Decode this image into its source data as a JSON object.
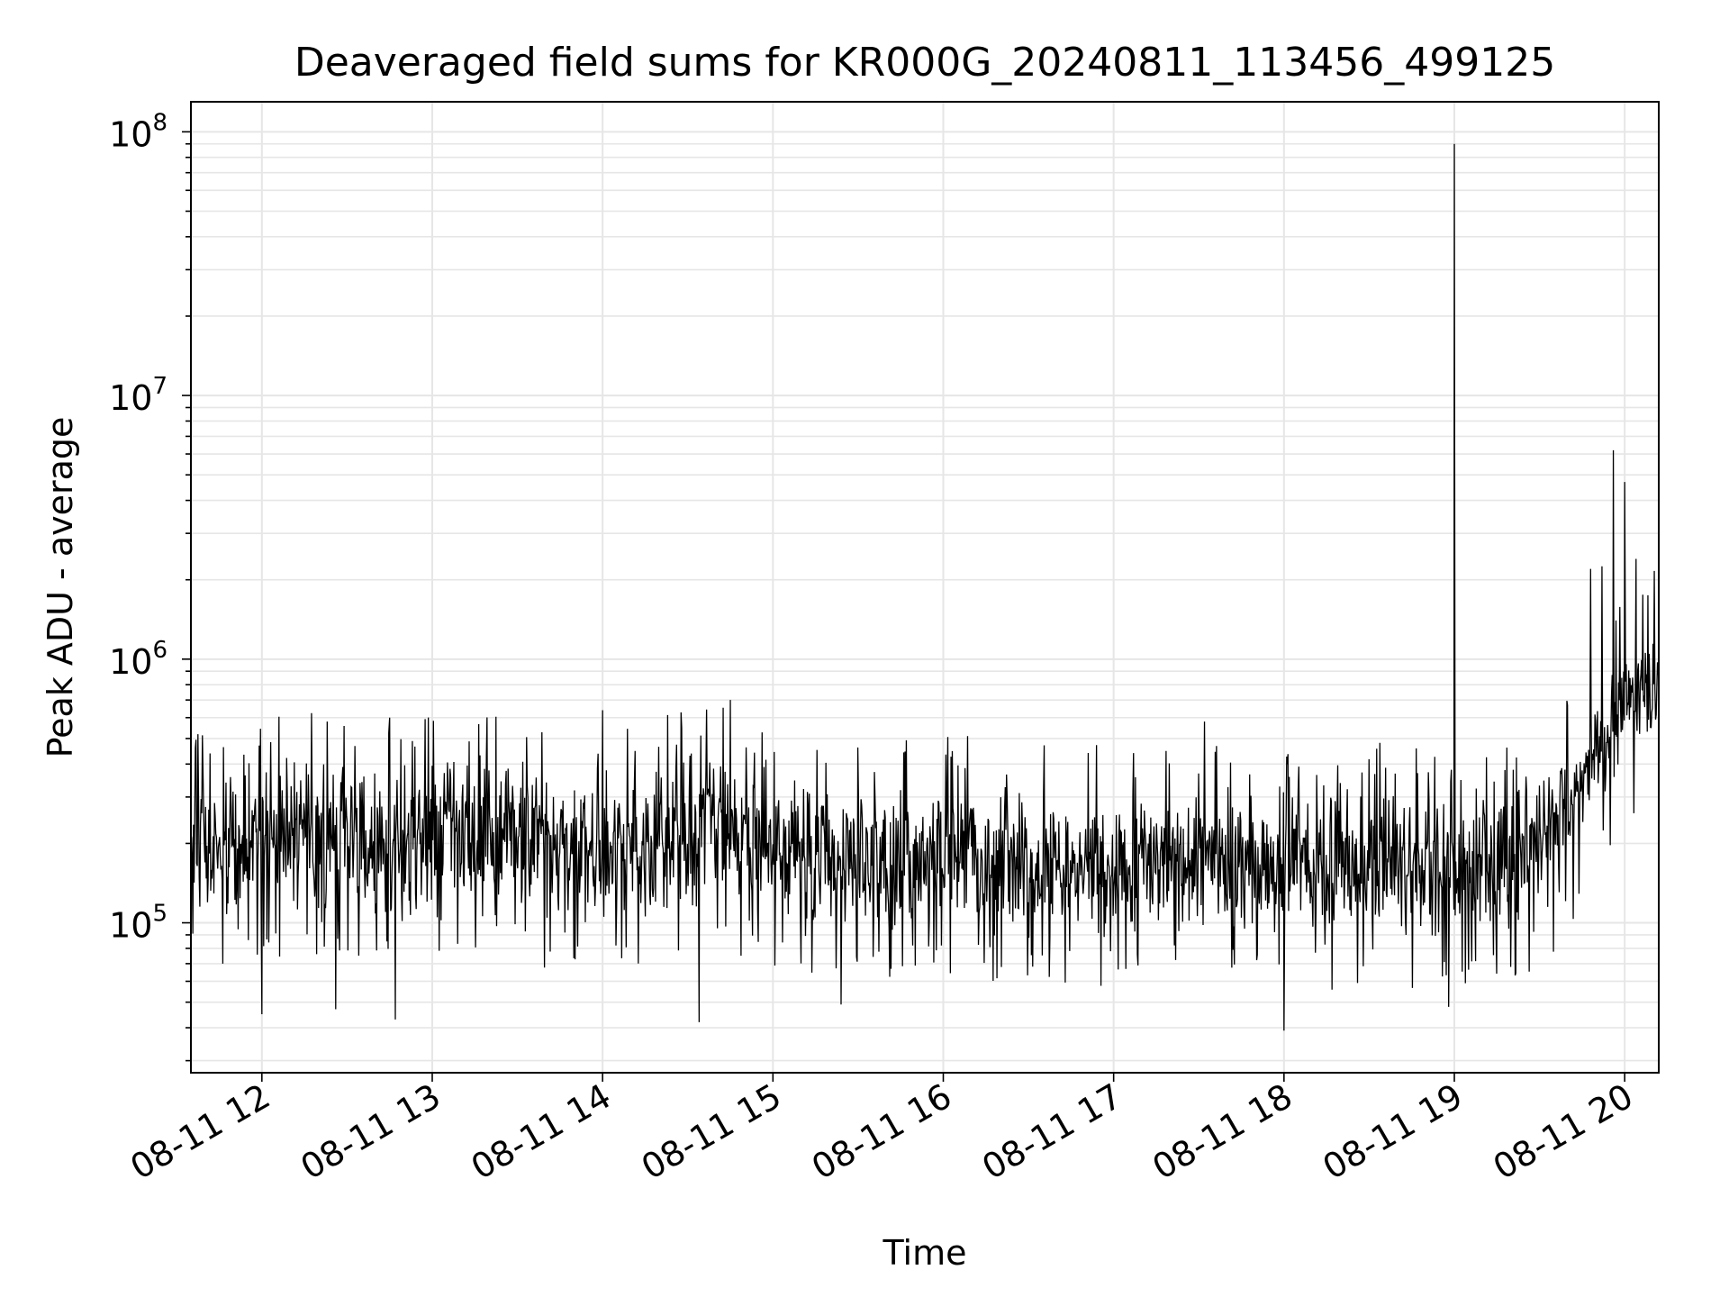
{
  "chart_data": {
    "type": "line",
    "title": "Deaveraged field sums for KR000G_20240811_113456_499125",
    "xlabel": "Time",
    "ylabel": "Peak ADU - average",
    "x_range": [
      "2024-08-11 11:35:00",
      "2024-08-11 20:12:00"
    ],
    "ylim": [
      27000,
      130000000
    ],
    "yscale": "log",
    "grid": true,
    "line_color": "#000000",
    "grid_color": "#e6e6e6",
    "x_ticks": [
      {
        "value": "2024-08-11 12:00:00",
        "label": "08-11 12"
      },
      {
        "value": "2024-08-11 13:00:00",
        "label": "08-11 13"
      },
      {
        "value": "2024-08-11 14:00:00",
        "label": "08-11 14"
      },
      {
        "value": "2024-08-11 15:00:00",
        "label": "08-11 15"
      },
      {
        "value": "2024-08-11 16:00:00",
        "label": "08-11 16"
      },
      {
        "value": "2024-08-11 17:00:00",
        "label": "08-11 17"
      },
      {
        "value": "2024-08-11 18:00:00",
        "label": "08-11 18"
      },
      {
        "value": "2024-08-11 19:00:00",
        "label": "08-11 19"
      },
      {
        "value": "2024-08-11 20:00:00",
        "label": "08-11 20"
      }
    ],
    "y_ticks": [
      {
        "value": 100000,
        "base": "10",
        "exp": "5"
      },
      {
        "value": 1000000,
        "base": "10",
        "exp": "6"
      },
      {
        "value": 10000000,
        "base": "10",
        "exp": "7"
      },
      {
        "value": 100000000,
        "base": "10",
        "exp": "8"
      }
    ],
    "series": [
      {
        "x": [
          "2024-08-11 11:35:00",
          "2024-08-11 11:45:00",
          "2024-08-11 12:00:00",
          "2024-08-11 12:20:00",
          "2024-08-11 12:40:00",
          "2024-08-11 13:00:00",
          "2024-08-11 13:20:00",
          "2024-08-11 13:40:00",
          "2024-08-11 14:00:00",
          "2024-08-11 14:20:00",
          "2024-08-11 14:40:00",
          "2024-08-11 15:00:00",
          "2024-08-11 15:30:00",
          "2024-08-11 16:00:00",
          "2024-08-11 16:30:00",
          "2024-08-11 17:00:00",
          "2024-08-11 17:30:00",
          "2024-08-11 18:00:00",
          "2024-08-11 18:30:00",
          "2024-08-11 19:00:00",
          "2024-08-11 19:20:00",
          "2024-08-11 19:40:00",
          "2024-08-11 19:50:00",
          "2024-08-11 20:00:00",
          "2024-08-11 20:12:00"
        ],
        "values": [
          200000,
          190000,
          210000,
          220000,
          200000,
          210000,
          230000,
          200000,
          190000,
          200000,
          260000,
          180000,
          170000,
          180000,
          170000,
          165000,
          170000,
          165000,
          165000,
          160000,
          170000,
          260000,
          450000,
          650000,
          750000
        ],
        "spikes": [
          {
            "x": "2024-08-11 12:23:00",
            "value": 580000
          },
          {
            "x": "2024-08-11 12:45:00",
            "value": 600000
          },
          {
            "x": "2024-08-11 14:00:00",
            "value": 640000
          },
          {
            "x": "2024-08-11 14:45:00",
            "value": 700000
          },
          {
            "x": "2024-08-11 17:32:00",
            "value": 580000
          },
          {
            "x": "2024-08-11 19:00:00",
            "value": 90000000
          },
          {
            "x": "2024-08-11 19:48:00",
            "value": 2200000
          },
          {
            "x": "2024-08-11 19:52:00",
            "value": 2250000
          },
          {
            "x": "2024-08-11 19:56:00",
            "value": 6200000
          },
          {
            "x": "2024-08-11 20:00:00",
            "value": 4700000
          },
          {
            "x": "2024-08-11 20:04:00",
            "value": 2400000
          }
        ],
        "dips": [
          {
            "x": "2024-08-11 12:00:00",
            "value": 45000
          },
          {
            "x": "2024-08-11 12:26:00",
            "value": 47000
          },
          {
            "x": "2024-08-11 12:47:00",
            "value": 43000
          },
          {
            "x": "2024-08-11 14:34:00",
            "value": 42000
          },
          {
            "x": "2024-08-11 15:24:00",
            "value": 49000
          },
          {
            "x": "2024-08-11 18:00:00",
            "value": 39000
          },
          {
            "x": "2024-08-11 18:58:00",
            "value": 48000
          }
        ]
      }
    ]
  }
}
